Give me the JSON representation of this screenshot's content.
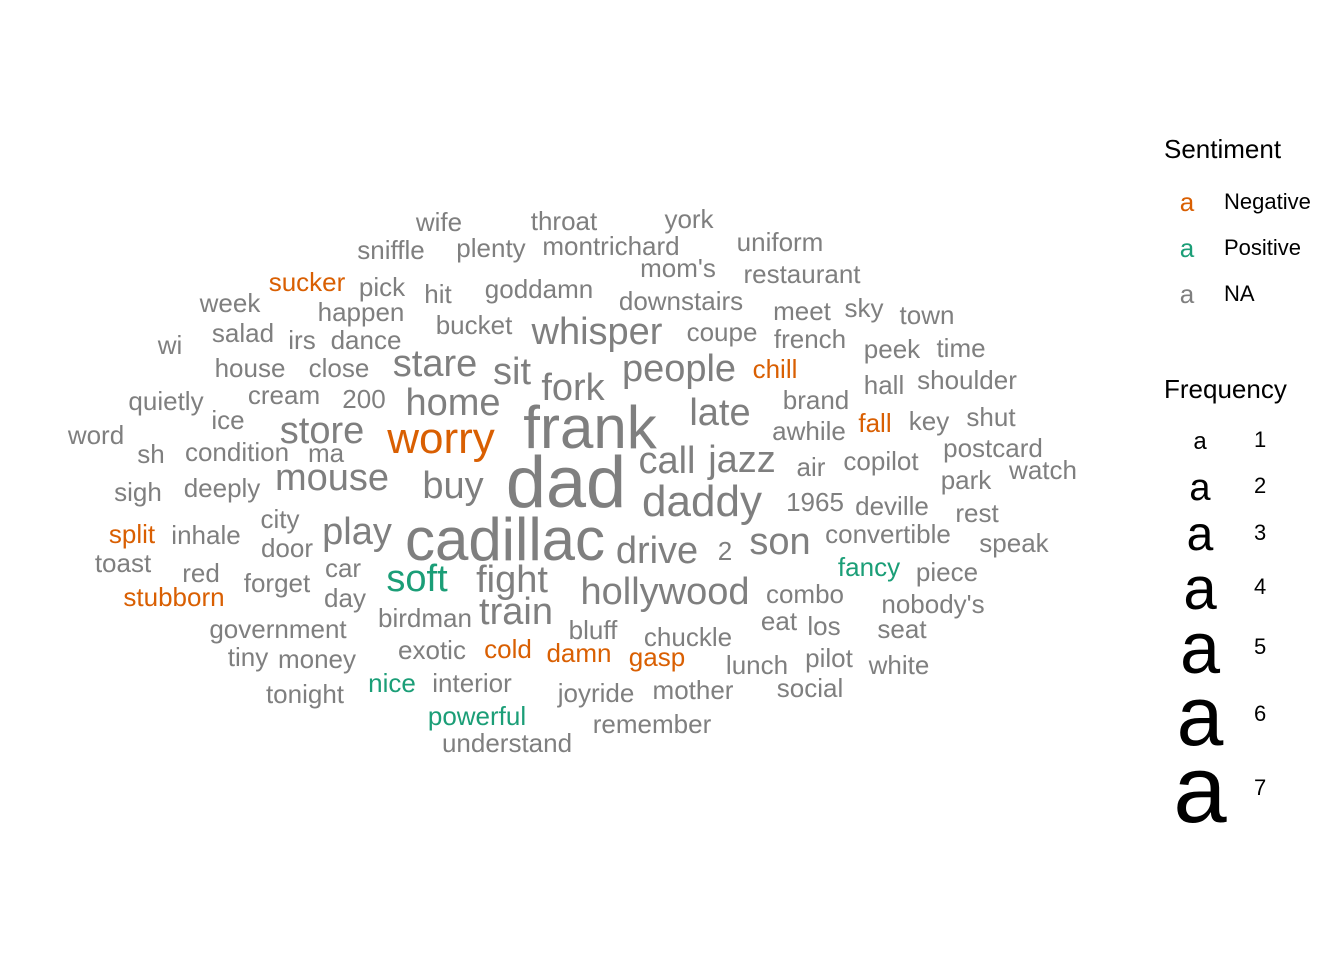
{
  "chart_data": {
    "type": "wordcloud",
    "colors": {
      "Negative": "#D95F02",
      "Positive": "#1B9E77",
      "NA": "#7F7F7F"
    },
    "words": [
      {
        "word": "dad",
        "frequency": 7,
        "sentiment": "NA"
      },
      {
        "word": "frank",
        "frequency": 6,
        "sentiment": "NA"
      },
      {
        "word": "cadillac",
        "frequency": 6,
        "sentiment": "NA"
      },
      {
        "word": "worry",
        "frequency": 5,
        "sentiment": "Negative"
      },
      {
        "word": "daddy",
        "frequency": 5,
        "sentiment": "NA"
      },
      {
        "word": "whisper",
        "frequency": 4,
        "sentiment": "NA"
      },
      {
        "word": "people",
        "frequency": 4,
        "sentiment": "NA"
      },
      {
        "word": "late",
        "frequency": 4,
        "sentiment": "NA"
      },
      {
        "word": "home",
        "frequency": 4,
        "sentiment": "NA"
      },
      {
        "word": "stare",
        "frequency": 4,
        "sentiment": "NA"
      },
      {
        "word": "store",
        "frequency": 4,
        "sentiment": "NA"
      },
      {
        "word": "mouse",
        "frequency": 4,
        "sentiment": "NA"
      },
      {
        "word": "buy",
        "frequency": 4,
        "sentiment": "NA"
      },
      {
        "word": "call",
        "frequency": 4,
        "sentiment": "NA"
      },
      {
        "word": "jazz",
        "frequency": 4,
        "sentiment": "NA"
      },
      {
        "word": "fork",
        "frequency": 4,
        "sentiment": "NA"
      },
      {
        "word": "sit",
        "frequency": 4,
        "sentiment": "NA"
      },
      {
        "word": "play",
        "frequency": 4,
        "sentiment": "NA"
      },
      {
        "word": "soft",
        "frequency": 4,
        "sentiment": "Positive"
      },
      {
        "word": "fight",
        "frequency": 4,
        "sentiment": "NA"
      },
      {
        "word": "drive",
        "frequency": 4,
        "sentiment": "NA"
      },
      {
        "word": "son",
        "frequency": 4,
        "sentiment": "NA"
      },
      {
        "word": "hollywood",
        "frequency": 4,
        "sentiment": "NA"
      },
      {
        "word": "train",
        "frequency": 4,
        "sentiment": "NA"
      },
      {
        "word": "wife",
        "frequency": 2,
        "sentiment": "NA"
      },
      {
        "word": "throat",
        "frequency": 2,
        "sentiment": "NA"
      },
      {
        "word": "york",
        "frequency": 2,
        "sentiment": "NA"
      },
      {
        "word": "sniffle",
        "frequency": 2,
        "sentiment": "NA"
      },
      {
        "word": "plenty",
        "frequency": 2,
        "sentiment": "NA"
      },
      {
        "word": "montrichard",
        "frequency": 2,
        "sentiment": "NA"
      },
      {
        "word": "uniform",
        "frequency": 2,
        "sentiment": "NA"
      },
      {
        "word": "mom's",
        "frequency": 2,
        "sentiment": "NA"
      },
      {
        "word": "sucker",
        "frequency": 2,
        "sentiment": "Negative"
      },
      {
        "word": "pick",
        "frequency": 2,
        "sentiment": "NA"
      },
      {
        "word": "restaurant",
        "frequency": 2,
        "sentiment": "NA"
      },
      {
        "word": "hit",
        "frequency": 2,
        "sentiment": "NA"
      },
      {
        "word": "goddamn",
        "frequency": 2,
        "sentiment": "NA"
      },
      {
        "word": "week",
        "frequency": 2,
        "sentiment": "NA"
      },
      {
        "word": "happen",
        "frequency": 2,
        "sentiment": "NA"
      },
      {
        "word": "downstairs",
        "frequency": 2,
        "sentiment": "NA"
      },
      {
        "word": "meet",
        "frequency": 2,
        "sentiment": "NA"
      },
      {
        "word": "sky",
        "frequency": 2,
        "sentiment": "NA"
      },
      {
        "word": "town",
        "frequency": 2,
        "sentiment": "NA"
      },
      {
        "word": "bucket",
        "frequency": 2,
        "sentiment": "NA"
      },
      {
        "word": "salad",
        "frequency": 2,
        "sentiment": "NA"
      },
      {
        "word": "wi",
        "frequency": 2,
        "sentiment": "NA"
      },
      {
        "word": "irs",
        "frequency": 2,
        "sentiment": "NA"
      },
      {
        "word": "dance",
        "frequency": 2,
        "sentiment": "NA"
      },
      {
        "word": "coupe",
        "frequency": 2,
        "sentiment": "NA"
      },
      {
        "word": "french",
        "frequency": 2,
        "sentiment": "NA"
      },
      {
        "word": "peek",
        "frequency": 2,
        "sentiment": "NA"
      },
      {
        "word": "time",
        "frequency": 2,
        "sentiment": "NA"
      },
      {
        "word": "house",
        "frequency": 2,
        "sentiment": "NA"
      },
      {
        "word": "close",
        "frequency": 2,
        "sentiment": "NA"
      },
      {
        "word": "chill",
        "frequency": 2,
        "sentiment": "Negative"
      },
      {
        "word": "hall",
        "frequency": 2,
        "sentiment": "NA"
      },
      {
        "word": "shoulder",
        "frequency": 2,
        "sentiment": "NA"
      },
      {
        "word": "quietly",
        "frequency": 2,
        "sentiment": "NA"
      },
      {
        "word": "cream",
        "frequency": 2,
        "sentiment": "NA"
      },
      {
        "word": "200",
        "frequency": 2,
        "sentiment": "NA"
      },
      {
        "word": "brand",
        "frequency": 2,
        "sentiment": "NA"
      },
      {
        "word": "ice",
        "frequency": 2,
        "sentiment": "NA"
      },
      {
        "word": "fall",
        "frequency": 2,
        "sentiment": "Negative"
      },
      {
        "word": "key",
        "frequency": 2,
        "sentiment": "NA"
      },
      {
        "word": "shut",
        "frequency": 2,
        "sentiment": "NA"
      },
      {
        "word": "word",
        "frequency": 2,
        "sentiment": "NA"
      },
      {
        "word": "awhile",
        "frequency": 2,
        "sentiment": "NA"
      },
      {
        "word": "postcard",
        "frequency": 2,
        "sentiment": "NA"
      },
      {
        "word": "sh",
        "frequency": 2,
        "sentiment": "NA"
      },
      {
        "word": "condition",
        "frequency": 2,
        "sentiment": "NA"
      },
      {
        "word": "ma",
        "frequency": 2,
        "sentiment": "NA"
      },
      {
        "word": "air",
        "frequency": 2,
        "sentiment": "NA"
      },
      {
        "word": "copilot",
        "frequency": 2,
        "sentiment": "NA"
      },
      {
        "word": "watch",
        "frequency": 2,
        "sentiment": "NA"
      },
      {
        "word": "park",
        "frequency": 2,
        "sentiment": "NA"
      },
      {
        "word": "sigh",
        "frequency": 2,
        "sentiment": "NA"
      },
      {
        "word": "deeply",
        "frequency": 2,
        "sentiment": "NA"
      },
      {
        "word": "1965",
        "frequency": 2,
        "sentiment": "NA"
      },
      {
        "word": "deville",
        "frequency": 2,
        "sentiment": "NA"
      },
      {
        "word": "rest",
        "frequency": 2,
        "sentiment": "NA"
      },
      {
        "word": "split",
        "frequency": 2,
        "sentiment": "Negative"
      },
      {
        "word": "inhale",
        "frequency": 2,
        "sentiment": "NA"
      },
      {
        "word": "city",
        "frequency": 2,
        "sentiment": "NA"
      },
      {
        "word": "convertible",
        "frequency": 2,
        "sentiment": "NA"
      },
      {
        "word": "speak",
        "frequency": 2,
        "sentiment": "NA"
      },
      {
        "word": "door",
        "frequency": 2,
        "sentiment": "NA"
      },
      {
        "word": "2",
        "frequency": 2,
        "sentiment": "NA"
      },
      {
        "word": "toast",
        "frequency": 2,
        "sentiment": "NA"
      },
      {
        "word": "car",
        "frequency": 2,
        "sentiment": "NA"
      },
      {
        "word": "fancy",
        "frequency": 2,
        "sentiment": "Positive"
      },
      {
        "word": "piece",
        "frequency": 2,
        "sentiment": "NA"
      },
      {
        "word": "red",
        "frequency": 2,
        "sentiment": "NA"
      },
      {
        "word": "forget",
        "frequency": 2,
        "sentiment": "NA"
      },
      {
        "word": "stubborn",
        "frequency": 2,
        "sentiment": "Negative"
      },
      {
        "word": "day",
        "frequency": 2,
        "sentiment": "NA"
      },
      {
        "word": "combo",
        "frequency": 2,
        "sentiment": "NA"
      },
      {
        "word": "nobody's",
        "frequency": 2,
        "sentiment": "NA"
      },
      {
        "word": "birdman",
        "frequency": 2,
        "sentiment": "NA"
      },
      {
        "word": "eat",
        "frequency": 2,
        "sentiment": "NA"
      },
      {
        "word": "los",
        "frequency": 2,
        "sentiment": "NA"
      },
      {
        "word": "seat",
        "frequency": 2,
        "sentiment": "NA"
      },
      {
        "word": "government",
        "frequency": 2,
        "sentiment": "NA"
      },
      {
        "word": "bluff",
        "frequency": 2,
        "sentiment": "NA"
      },
      {
        "word": "chuckle",
        "frequency": 2,
        "sentiment": "NA"
      },
      {
        "word": "tiny",
        "frequency": 2,
        "sentiment": "NA"
      },
      {
        "word": "money",
        "frequency": 2,
        "sentiment": "NA"
      },
      {
        "word": "exotic",
        "frequency": 2,
        "sentiment": "NA"
      },
      {
        "word": "cold",
        "frequency": 2,
        "sentiment": "Negative"
      },
      {
        "word": "damn",
        "frequency": 2,
        "sentiment": "Negative"
      },
      {
        "word": "gasp",
        "frequency": 2,
        "sentiment": "Negative"
      },
      {
        "word": "lunch",
        "frequency": 2,
        "sentiment": "NA"
      },
      {
        "word": "pilot",
        "frequency": 2,
        "sentiment": "NA"
      },
      {
        "word": "white",
        "frequency": 2,
        "sentiment": "NA"
      },
      {
        "word": "tonight",
        "frequency": 2,
        "sentiment": "NA"
      },
      {
        "word": "nice",
        "frequency": 2,
        "sentiment": "Positive"
      },
      {
        "word": "interior",
        "frequency": 2,
        "sentiment": "NA"
      },
      {
        "word": "joyride",
        "frequency": 2,
        "sentiment": "NA"
      },
      {
        "word": "mother",
        "frequency": 2,
        "sentiment": "NA"
      },
      {
        "word": "social",
        "frequency": 2,
        "sentiment": "NA"
      },
      {
        "word": "powerful",
        "frequency": 2,
        "sentiment": "Positive"
      },
      {
        "word": "remember",
        "frequency": 2,
        "sentiment": "NA"
      },
      {
        "word": "understand",
        "frequency": 2,
        "sentiment": "NA"
      }
    ],
    "legend": {
      "sentiment": {
        "title": "Sentiment",
        "glyph": "a",
        "entries": [
          {
            "label": "Negative",
            "color": "#D95F02"
          },
          {
            "label": "Positive",
            "color": "#1B9E77"
          },
          {
            "label": "NA",
            "color": "#7F7F7F"
          }
        ]
      },
      "frequency": {
        "title": "Frequency",
        "glyph": "a",
        "entries": [
          1,
          2,
          3,
          4,
          5,
          6,
          7
        ]
      },
      "placement": "right"
    }
  }
}
